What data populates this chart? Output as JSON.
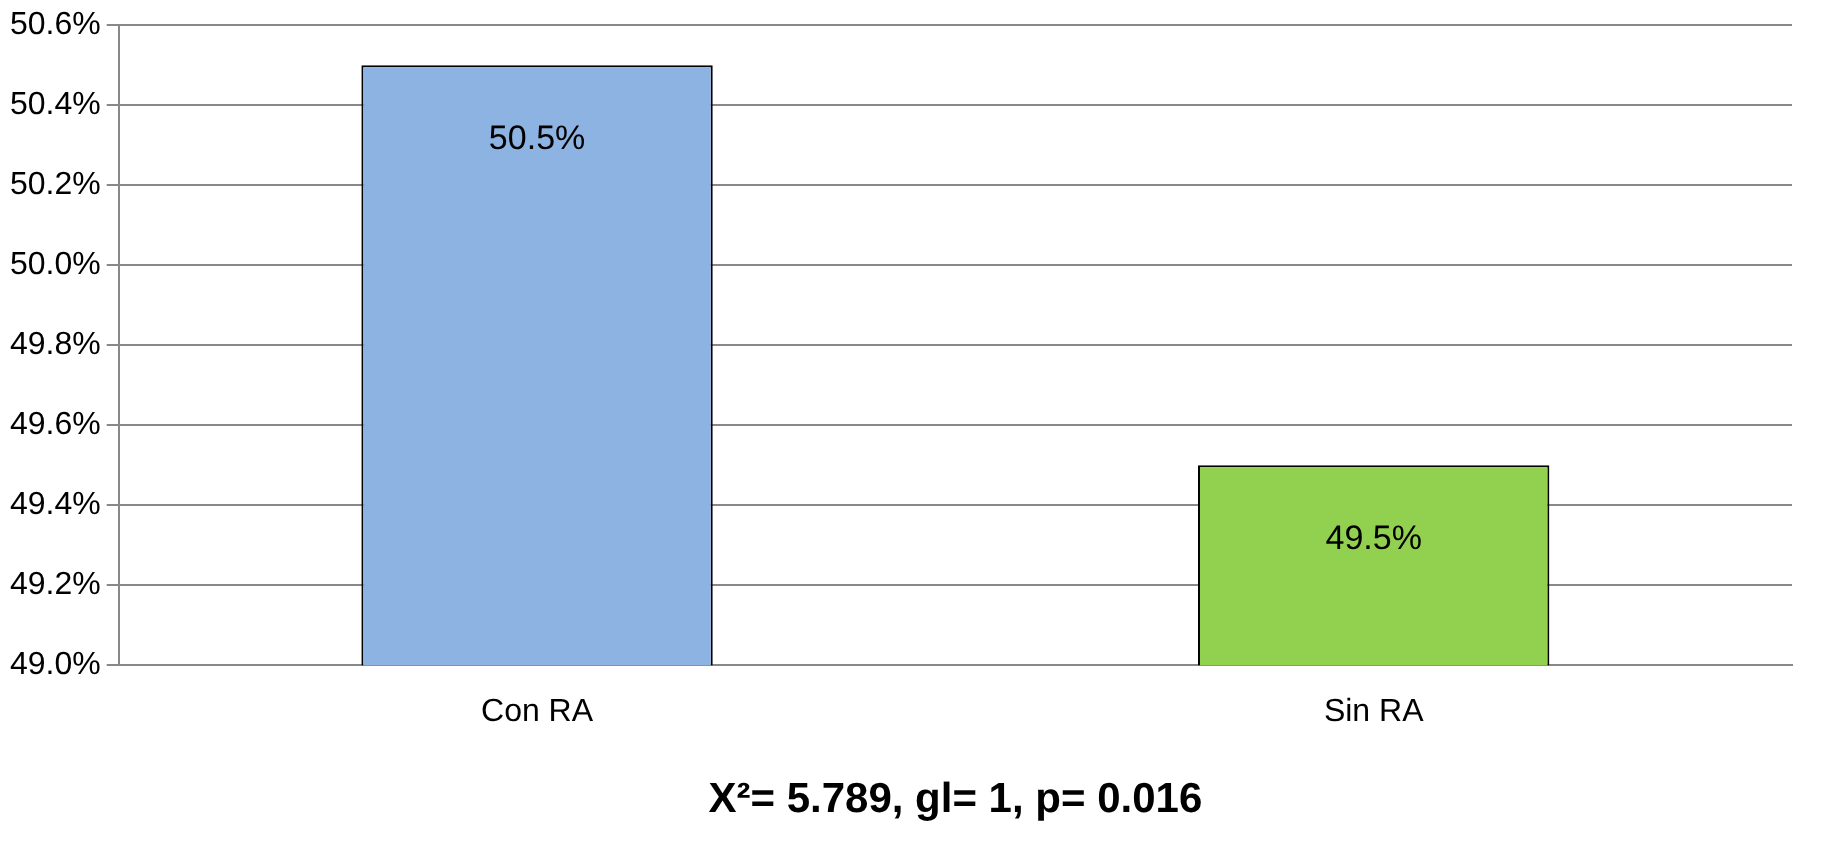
{
  "chart_data": {
    "type": "bar",
    "xlabel": "X²= 5.789, gl= 1, p= 0.016",
    "categories": [
      "Con RA",
      "Sin RA"
    ],
    "values": [
      50.5,
      49.5
    ],
    "colors": [
      "#8db3e2",
      "#92d050"
    ],
    "value_labels": [
      "50.5%",
      "49.5%"
    ],
    "ylim": [
      49.0,
      50.6
    ],
    "yticks": [
      {
        "value": 49.0,
        "label": "49.0%"
      },
      {
        "value": 49.2,
        "label": "49.2%"
      },
      {
        "value": 49.4,
        "label": "49.4%"
      },
      {
        "value": 49.6,
        "label": "49.6%"
      },
      {
        "value": 49.8,
        "label": "49.8%"
      },
      {
        "value": 50.0,
        "label": "50.0%"
      },
      {
        "value": 50.2,
        "label": "50.2%"
      },
      {
        "value": 50.4,
        "label": "50.4%"
      },
      {
        "value": 50.6,
        "label": "50.6%"
      }
    ],
    "grid": "y",
    "legend": false
  }
}
